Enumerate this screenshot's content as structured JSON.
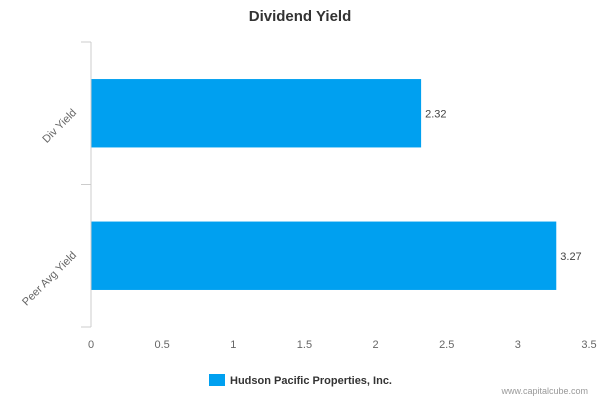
{
  "chart_data": {
    "type": "bar",
    "orientation": "horizontal",
    "title": "Dividend Yield",
    "categories": [
      "Div Yield",
      "Peer Avg Yield"
    ],
    "series": [
      {
        "name": "Hudson Pacific Properties, Inc.",
        "values": [
          2.32,
          3.27
        ],
        "color": "#00a0f0"
      }
    ],
    "data_labels": [
      "2.32",
      "3.27"
    ],
    "x_ticks": [
      "0",
      "0.5",
      "1",
      "1.5",
      "2",
      "2.5",
      "3",
      "3.5"
    ],
    "xlim": [
      0,
      3.5
    ],
    "grid": false,
    "legend": "bottom-center"
  },
  "credit": "www.capitalcube.com",
  "colors": {
    "bar": "#00a0f0",
    "axis": "#cccccc"
  }
}
